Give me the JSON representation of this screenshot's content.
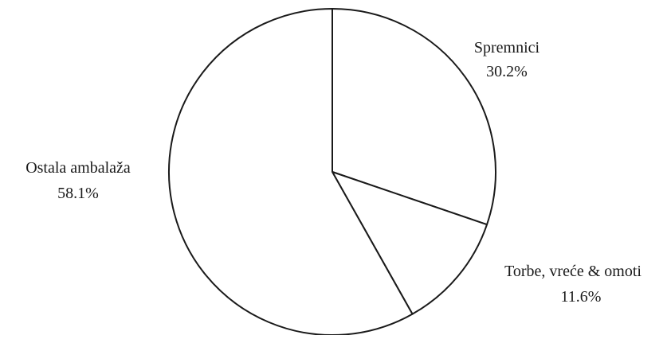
{
  "chart_data": {
    "type": "pie",
    "title": "",
    "start_angle_deg": 0,
    "direction": "clockwise",
    "colors": {
      "fill": "#ffffff",
      "stroke": "#1a1a1a",
      "text": "#1a1a1a"
    },
    "slices": [
      {
        "label": "Spremnici",
        "value": 30.2,
        "value_label": "30.2%"
      },
      {
        "label": "Torbe, vreće & omoti",
        "value": 11.6,
        "value_label": "11.6%"
      },
      {
        "label": "Ostala ambalaža",
        "value": 58.1,
        "value_label": "58.1%"
      }
    ]
  }
}
